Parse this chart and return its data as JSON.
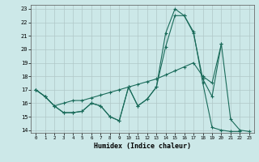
{
  "xlabel": "Humidex (Indice chaleur)",
  "background_color": "#cce8e8",
  "grid_color": "#b0c8c8",
  "line_color": "#1a6b5a",
  "xlim": [
    -0.5,
    23.5
  ],
  "ylim": [
    13.8,
    23.3
  ],
  "xticks": [
    0,
    1,
    2,
    3,
    4,
    5,
    6,
    7,
    8,
    9,
    10,
    11,
    12,
    13,
    14,
    15,
    16,
    17,
    18,
    19,
    20,
    21,
    22,
    23
  ],
  "yticks": [
    14,
    15,
    16,
    17,
    18,
    19,
    20,
    21,
    22,
    23
  ],
  "series": [
    {
      "x": [
        0,
        1,
        2,
        3,
        4,
        5,
        6,
        7,
        8,
        9,
        10,
        11,
        12,
        13,
        14,
        15,
        16,
        17,
        18,
        19,
        20,
        21,
        22,
        23
      ],
      "y": [
        17.0,
        16.5,
        15.8,
        15.3,
        15.3,
        15.4,
        16.0,
        15.8,
        15.0,
        14.7,
        17.2,
        15.8,
        16.3,
        17.2,
        20.2,
        22.5,
        22.5,
        21.2,
        17.8,
        16.5,
        20.4,
        14.8,
        14.0,
        13.9
      ]
    },
    {
      "x": [
        0,
        1,
        2,
        3,
        4,
        5,
        6,
        7,
        8,
        9,
        10,
        11,
        12,
        13,
        14,
        15,
        16,
        17,
        18,
        19,
        20,
        21,
        22
      ],
      "y": [
        17.0,
        16.5,
        15.8,
        15.3,
        15.3,
        15.4,
        16.0,
        15.8,
        15.0,
        14.7,
        17.2,
        15.8,
        16.3,
        17.2,
        21.2,
        23.0,
        22.5,
        21.3,
        17.5,
        14.2,
        14.0,
        13.9,
        13.9
      ]
    },
    {
      "x": [
        0,
        1,
        2,
        3,
        4,
        5,
        6,
        7,
        8,
        9,
        10,
        11,
        12,
        13,
        14,
        15,
        16,
        17,
        18,
        19,
        20
      ],
      "y": [
        17.0,
        16.5,
        15.8,
        16.0,
        16.2,
        16.2,
        16.4,
        16.6,
        16.8,
        17.0,
        17.2,
        17.4,
        17.6,
        17.8,
        18.1,
        18.4,
        18.7,
        19.0,
        18.0,
        17.5,
        20.4
      ]
    }
  ]
}
